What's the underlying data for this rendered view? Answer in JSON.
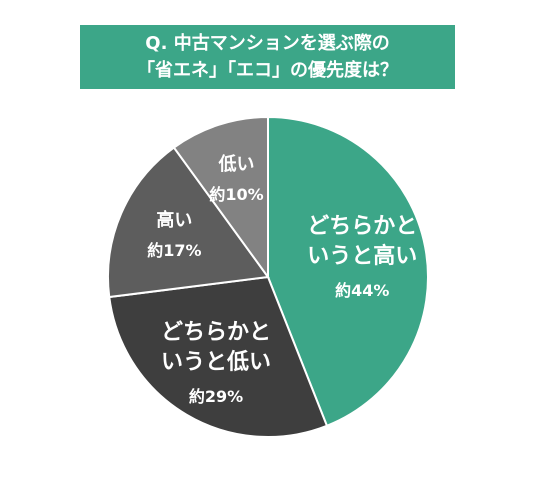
{
  "chart_data": {
    "type": "pie",
    "title": [
      "Q. 中古マンションを選ぶ際の",
      "「省エネ」「エコ」の優先度は？"
    ],
    "categories": [
      "どちらかというと高い",
      "どちらかというと低い",
      "高い",
      "低い"
    ],
    "values": [
      44,
      29,
      17,
      10
    ],
    "value_labels": [
      "約44%",
      "約29%",
      "約17%",
      "約10%"
    ],
    "colors": [
      "#3ca688",
      "#3e3e3e",
      "#5d5d5d",
      "#828282"
    ],
    "title_color": "#3ca688"
  }
}
